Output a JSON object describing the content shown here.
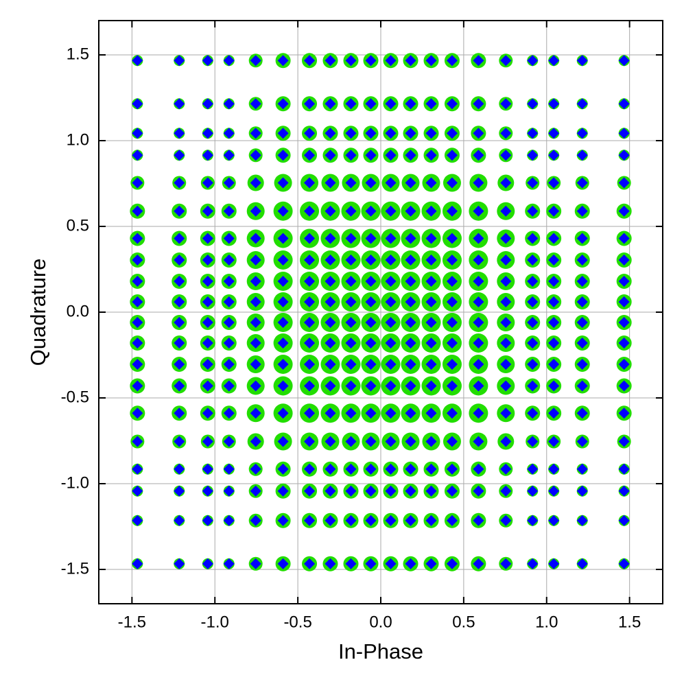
{
  "chart_data": {
    "type": "scatter",
    "x_label": "In-Phase",
    "y_label": "Quadrature",
    "xlim": [
      -1.7,
      1.7
    ],
    "ylim": [
      -1.7,
      1.7
    ],
    "xticks": [
      -1.5,
      {
        "value": -1,
        "label": "-1.0"
      },
      -0.5,
      {
        "value": 0,
        "label": "0.0"
      },
      0.5,
      {
        "value": 1,
        "label": "1.0"
      },
      1.5
    ],
    "yticks": [
      -1.5,
      {
        "value": -1,
        "label": "-1.0"
      },
      -0.5,
      {
        "value": 0,
        "label": "0.0"
      },
      0.5,
      {
        "value": 1,
        "label": "1.0"
      },
      1.5
    ],
    "grid": true,
    "circle_color": "#22dd00",
    "marker_color": "#0000ff",
    "levels": [
      -1.467,
      -1.215,
      -1.043,
      -0.915,
      -0.754,
      -0.589,
      -0.43,
      -0.304,
      -0.18,
      -0.06,
      0.06,
      0.18,
      0.304,
      0.43,
      0.589,
      0.754,
      0.915,
      1.043,
      1.215,
      1.467
    ],
    "sizes": [
      [
        8,
        8,
        8,
        8,
        10,
        11,
        11,
        11,
        11,
        11,
        11,
        11,
        11,
        11,
        11,
        10,
        8,
        8,
        8,
        8
      ],
      [
        8,
        8,
        8,
        8,
        10,
        11,
        11,
        11,
        11,
        11,
        11,
        11,
        11,
        11,
        11,
        10,
        8,
        8,
        8,
        8
      ],
      [
        8,
        8,
        8,
        8,
        10,
        11,
        11,
        11,
        11,
        11,
        11,
        11,
        11,
        11,
        11,
        10,
        8,
        8,
        8,
        8
      ],
      [
        8,
        8,
        8,
        8,
        10,
        11,
        11,
        11,
        11,
        11,
        11,
        11,
        11,
        11,
        11,
        10,
        8,
        8,
        8,
        8
      ],
      [
        10,
        10,
        10,
        10,
        12,
        13,
        13,
        13,
        13,
        13,
        13,
        13,
        13,
        13,
        13,
        12,
        10,
        10,
        10,
        10
      ],
      [
        11,
        11,
        11,
        11,
        13,
        14,
        14,
        14,
        14,
        14,
        14,
        14,
        14,
        14,
        14,
        13,
        11,
        11,
        11,
        11
      ],
      [
        11,
        11,
        11,
        11,
        13,
        14,
        14,
        14,
        14,
        14,
        14,
        14,
        14,
        14,
        14,
        13,
        11,
        11,
        11,
        11
      ],
      [
        11,
        11,
        11,
        11,
        13,
        14,
        14,
        14,
        14,
        14,
        14,
        14,
        14,
        14,
        14,
        13,
        11,
        11,
        11,
        11
      ],
      [
        11,
        11,
        11,
        11,
        13,
        14,
        14,
        14,
        14,
        14,
        14,
        14,
        14,
        14,
        14,
        13,
        11,
        11,
        11,
        11
      ],
      [
        11,
        11,
        11,
        11,
        13,
        14,
        14,
        14,
        14,
        14,
        14,
        14,
        14,
        14,
        14,
        13,
        11,
        11,
        11,
        11
      ],
      [
        11,
        11,
        11,
        11,
        13,
        14,
        14,
        14,
        14,
        14,
        14,
        14,
        14,
        14,
        14,
        13,
        11,
        11,
        11,
        11
      ],
      [
        11,
        11,
        11,
        11,
        13,
        14,
        14,
        14,
        14,
        14,
        14,
        14,
        14,
        14,
        14,
        13,
        11,
        11,
        11,
        11
      ],
      [
        11,
        11,
        11,
        11,
        13,
        14,
        14,
        14,
        14,
        14,
        14,
        14,
        14,
        14,
        14,
        13,
        11,
        11,
        11,
        11
      ],
      [
        11,
        11,
        11,
        11,
        13,
        14,
        14,
        14,
        14,
        14,
        14,
        14,
        14,
        14,
        14,
        13,
        11,
        11,
        11,
        11
      ],
      [
        11,
        11,
        11,
        11,
        13,
        14,
        14,
        14,
        14,
        14,
        14,
        14,
        14,
        14,
        14,
        13,
        11,
        11,
        11,
        11
      ],
      [
        10,
        10,
        10,
        10,
        12,
        13,
        13,
        13,
        13,
        13,
        13,
        13,
        13,
        13,
        13,
        12,
        10,
        10,
        10,
        10
      ],
      [
        8,
        8,
        8,
        8,
        10,
        11,
        11,
        11,
        11,
        11,
        11,
        11,
        11,
        11,
        11,
        10,
        8,
        8,
        8,
        8
      ],
      [
        8,
        8,
        8,
        8,
        10,
        11,
        11,
        11,
        11,
        11,
        11,
        11,
        11,
        11,
        11,
        10,
        8,
        8,
        8,
        8
      ],
      [
        8,
        8,
        8,
        8,
        10,
        11,
        11,
        11,
        11,
        11,
        11,
        11,
        11,
        11,
        11,
        10,
        8,
        8,
        8,
        8
      ],
      [
        8,
        8,
        8,
        8,
        10,
        11,
        11,
        11,
        11,
        11,
        11,
        11,
        11,
        11,
        11,
        10,
        8,
        8,
        8,
        8
      ]
    ]
  }
}
